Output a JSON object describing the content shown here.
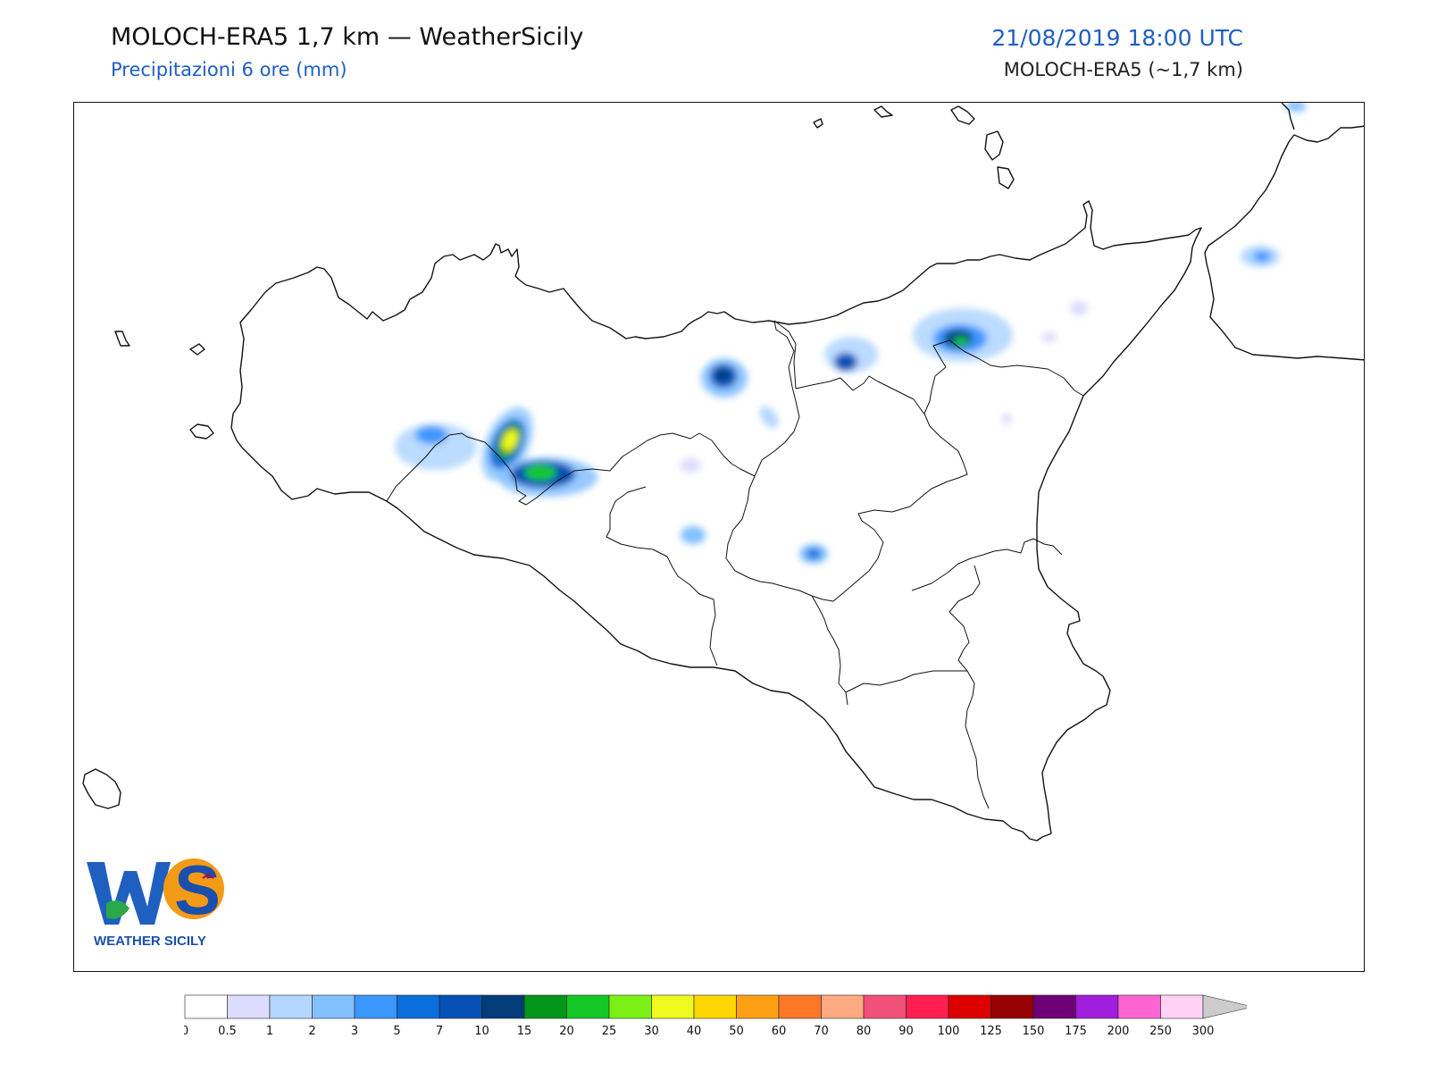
{
  "header": {
    "title": "MOLOCH-ERA5 1,7 km — WeatherSicily",
    "subtitle": "Precipitazioni 6 ore (mm)",
    "datetime": "21/08/2019 18:00 UTC",
    "model": "MOLOCH-ERA5 (~1,7 km)"
  },
  "logo": {
    "letters": "WS",
    "caption": "WEATHER SICILY"
  },
  "legend": {
    "ticks": [
      "0",
      "0.5",
      "1",
      "2",
      "3",
      "5",
      "7",
      "10",
      "15",
      "20",
      "25",
      "30",
      "40",
      "50",
      "60",
      "70",
      "80",
      "90",
      "100",
      "125",
      "150",
      "175",
      "200",
      "250",
      "300"
    ],
    "colors": [
      "#ffffff",
      "#dcdcff",
      "#b4d7ff",
      "#82c0ff",
      "#3c96ff",
      "#0a6edc",
      "#0550b4",
      "#033c78",
      "#04961a",
      "#14c828",
      "#7af014",
      "#f0fa1e",
      "#ffd700",
      "#ffa014",
      "#ff7828",
      "#ffaa82",
      "#f0507a",
      "#ff1e50",
      "#dc0000",
      "#960000",
      "#6e0078",
      "#a01edc",
      "#ff64d2",
      "#ffd2f5"
    ],
    "overflow_color": "#cccccc"
  },
  "precip_cells": [
    {
      "name": "cell-enna-north",
      "value": 10
    },
    {
      "name": "cell-palermo-hinterland",
      "value": 50
    },
    {
      "name": "cell-sosio-platani",
      "value": 20
    },
    {
      "name": "cell-nebrodi",
      "value": 15
    },
    {
      "name": "cell-nebrodi-west",
      "value": 7
    },
    {
      "name": "cell-belice",
      "value": 3
    },
    {
      "name": "cell-caltanissetta-south",
      "value": 3
    },
    {
      "name": "cell-enna-south",
      "value": 5
    },
    {
      "name": "cell-calabria",
      "value": 3
    },
    {
      "name": "cell-aeolian-edge",
      "value": 1
    },
    {
      "name": "cell-small-scattered",
      "value": 1
    }
  ]
}
